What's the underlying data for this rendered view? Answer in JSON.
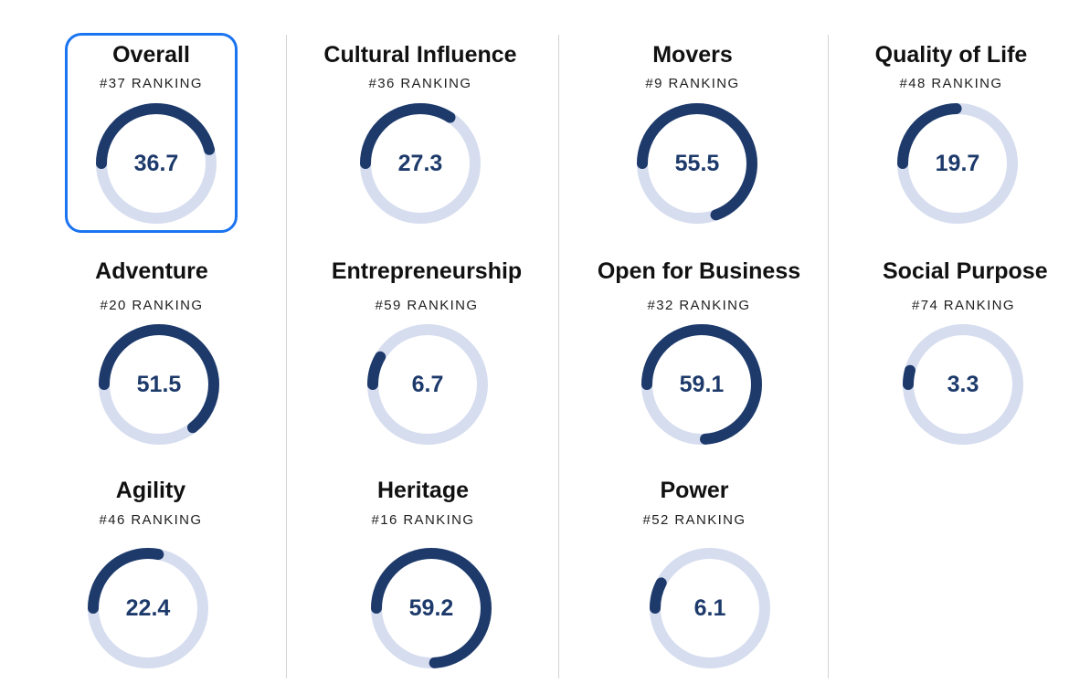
{
  "colors": {
    "track": "#d6ddef",
    "progress": "#1d3a6b",
    "value_text": "#1d3a6b",
    "selected_border": "#1a73f0",
    "divider": "#d4d4d4"
  },
  "gauge_scale_max": 80,
  "metrics": [
    {
      "id": "overall",
      "title": "Overall",
      "ranking": "#37 RANKING",
      "score": "36.7",
      "fraction": 0.459,
      "selected": true
    },
    {
      "id": "cultural-influence",
      "title": "Cultural Influence",
      "ranking": "#36 RANKING",
      "score": "27.3",
      "fraction": 0.341
    },
    {
      "id": "movers",
      "title": "Movers",
      "ranking": "#9 RANKING",
      "score": "55.5",
      "fraction": 0.694
    },
    {
      "id": "quality-of-life",
      "title": "Quality of Life",
      "ranking": "#48 RANKING",
      "score": "19.7",
      "fraction": 0.246
    },
    {
      "id": "adventure",
      "title": "Adventure",
      "ranking": "#20 RANKING",
      "score": "51.5",
      "fraction": 0.644
    },
    {
      "id": "entrepreneurship",
      "title": "Entrepreneurship",
      "ranking": "#59 RANKING",
      "score": "6.7",
      "fraction": 0.084
    },
    {
      "id": "open-for-business",
      "title": "Open for Business",
      "ranking": "#32 RANKING",
      "score": "59.1",
      "fraction": 0.739
    },
    {
      "id": "social-purpose",
      "title": "Social Purpose",
      "ranking": "#74 RANKING",
      "score": "3.3",
      "fraction": 0.041
    },
    {
      "id": "agility",
      "title": "Agility",
      "ranking": "#46 RANKING",
      "score": "22.4",
      "fraction": 0.28
    },
    {
      "id": "heritage",
      "title": "Heritage",
      "ranking": "#16 RANKING",
      "score": "59.2",
      "fraction": 0.74
    },
    {
      "id": "power",
      "title": "Power",
      "ranking": "#52 RANKING",
      "score": "6.1",
      "fraction": 0.076
    }
  ]
}
